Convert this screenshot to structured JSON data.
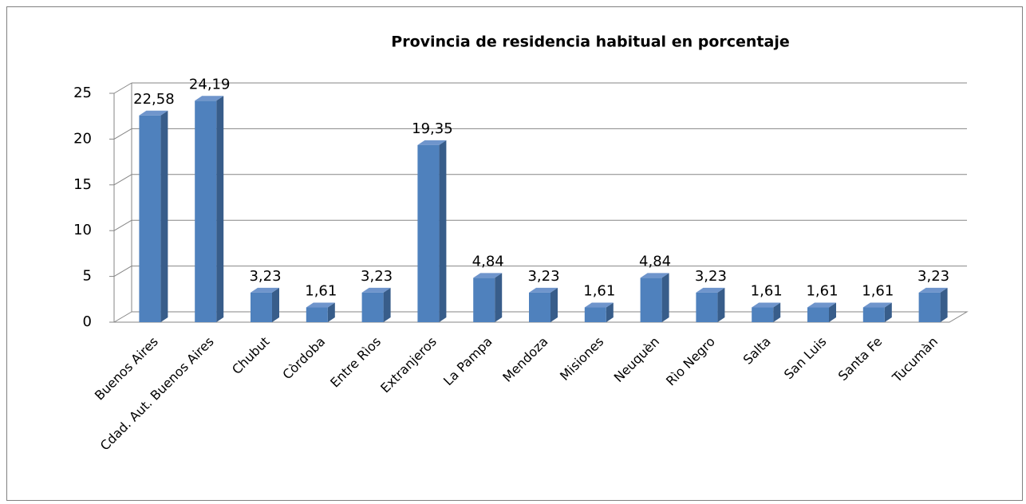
{
  "chart_data": {
    "type": "bar",
    "title": "Provincia de residencia habitual en porcentaje",
    "categories": [
      "Buenos Aires",
      "Cdad. Aut. Buenos Aires",
      "Chubut",
      "Còrdoba",
      "Entre Rìos",
      "Extranjeros",
      "La Pampa",
      "Mendoza",
      "Misiones",
      "Neuquèn",
      "Rìo Negro",
      "Salta",
      "San Luis",
      "Santa Fe",
      "Tucumàn"
    ],
    "values": [
      22.58,
      24.19,
      3.23,
      1.61,
      3.23,
      19.35,
      4.84,
      3.23,
      1.61,
      4.84,
      3.23,
      1.61,
      1.61,
      1.61,
      3.23
    ],
    "value_labels": [
      "22,58",
      "24,19",
      "3,23",
      "1,61",
      "3,23",
      "19,35",
      "4,84",
      "3,23",
      "1,61",
      "4,84",
      "3,23",
      "1,61",
      "1,61",
      "1,61",
      "3,23"
    ],
    "color": "#4f81bd",
    "ylim": [
      0,
      25
    ],
    "yticks": [
      0,
      5,
      10,
      15,
      20,
      25
    ],
    "grid": true
  }
}
